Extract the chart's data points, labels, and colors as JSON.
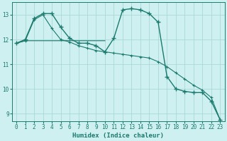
{
  "xlabel": "Humidex (Indice chaleur)",
  "bg_color": "#cff0f0",
  "grid_color": "#aad8d8",
  "line_color": "#1a7a6e",
  "xlim": [
    -0.5,
    23.5
  ],
  "ylim": [
    8.7,
    13.5
  ],
  "yticks": [
    9,
    10,
    11,
    12,
    13
  ],
  "xticks": [
    0,
    1,
    2,
    3,
    4,
    5,
    6,
    7,
    8,
    9,
    10,
    11,
    12,
    13,
    14,
    15,
    16,
    17,
    18,
    19,
    20,
    21,
    22,
    23
  ],
  "series1_x": [
    0,
    1,
    2,
    3,
    4,
    5,
    6,
    7,
    8,
    9,
    10,
    11,
    12,
    13,
    14,
    15,
    16,
    17,
    18,
    19,
    20,
    21,
    22,
    23
  ],
  "series1_y": [
    11.85,
    12.0,
    12.85,
    13.05,
    13.05,
    12.5,
    12.05,
    11.85,
    11.85,
    11.75,
    11.5,
    12.05,
    13.2,
    13.25,
    13.2,
    13.05,
    12.7,
    10.5,
    10.0,
    9.9,
    9.85,
    9.85,
    9.5,
    8.75
  ],
  "series2_x": [
    0,
    1,
    2,
    3,
    4,
    5,
    6,
    7,
    8,
    9,
    10,
    11,
    12,
    13,
    14,
    15,
    16,
    17,
    18,
    19,
    20,
    21,
    22,
    23
  ],
  "series2_y": [
    11.85,
    11.95,
    12.8,
    13.0,
    12.45,
    12.0,
    11.9,
    11.75,
    11.65,
    11.55,
    11.5,
    11.45,
    11.4,
    11.35,
    11.3,
    11.25,
    11.1,
    10.9,
    10.65,
    10.4,
    10.15,
    9.95,
    9.65,
    8.75
  ],
  "series3_x": [
    0,
    1,
    2,
    3,
    4,
    5,
    6,
    7,
    8,
    9,
    10
  ],
  "series3_y": [
    11.85,
    11.95,
    11.95,
    11.95,
    11.95,
    11.95,
    11.95,
    11.95,
    11.95,
    11.95,
    11.95
  ]
}
